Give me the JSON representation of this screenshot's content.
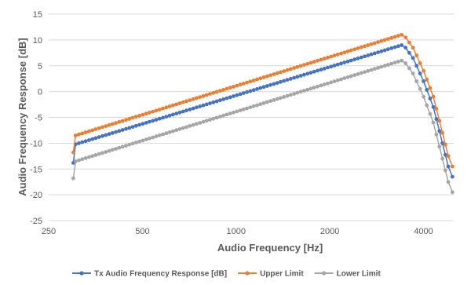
{
  "chart_data": {
    "type": "line",
    "title": "",
    "xlabel": "Audio Frequency [Hz]",
    "ylabel": "Audio Frequency Response [dB]",
    "xscale": "log",
    "xlim": [
      250,
      5000
    ],
    "ylim": [
      -25,
      15
    ],
    "x_ticks": [
      250,
      500,
      1000,
      2000,
      4000
    ],
    "x_tick_labels": [
      "250",
      "500",
      "1000",
      "2000",
      "4000"
    ],
    "y_ticks": [
      -25,
      -20,
      -15,
      -10,
      -5,
      0,
      5,
      10,
      15
    ],
    "y_tick_labels": [
      "-25",
      "-20",
      "-15",
      "-10",
      "-5",
      "0",
      "5",
      "10",
      "15"
    ],
    "grid": "horizontal",
    "legend_position": "bottom",
    "series": [
      {
        "name": "Tx Audio Frequency Response [dB]",
        "color": "#4472c4",
        "points": [
          [
            300,
            -13.8
          ],
          [
            305,
            -10.2
          ],
          [
            3400,
            9.0
          ],
          [
            3500,
            8.5
          ],
          [
            3700,
            6.5
          ],
          [
            4000,
            2.0
          ],
          [
            4300,
            -3.0
          ],
          [
            4600,
            -10.0
          ],
          [
            4800,
            -14.5
          ],
          [
            4950,
            -16.5
          ]
        ]
      },
      {
        "name": "Upper Limit",
        "color": "#ed7d31",
        "points": [
          [
            300,
            -11.8
          ],
          [
            305,
            -8.5
          ],
          [
            3400,
            11.0
          ],
          [
            3500,
            10.5
          ],
          [
            3700,
            8.5
          ],
          [
            4000,
            4.0
          ],
          [
            4300,
            -1.0
          ],
          [
            4600,
            -8.0
          ],
          [
            4800,
            -12.5
          ],
          [
            4950,
            -14.5
          ]
        ]
      },
      {
        "name": "Lower Limit",
        "color": "#a5a5a5",
        "points": [
          [
            300,
            -16.8
          ],
          [
            305,
            -13.5
          ],
          [
            3400,
            6.0
          ],
          [
            3500,
            5.5
          ],
          [
            3700,
            3.5
          ],
          [
            4000,
            -1.0
          ],
          [
            4300,
            -6.0
          ],
          [
            4600,
            -13.0
          ],
          [
            4800,
            -17.5
          ],
          [
            4950,
            -19.5
          ]
        ]
      }
    ]
  }
}
